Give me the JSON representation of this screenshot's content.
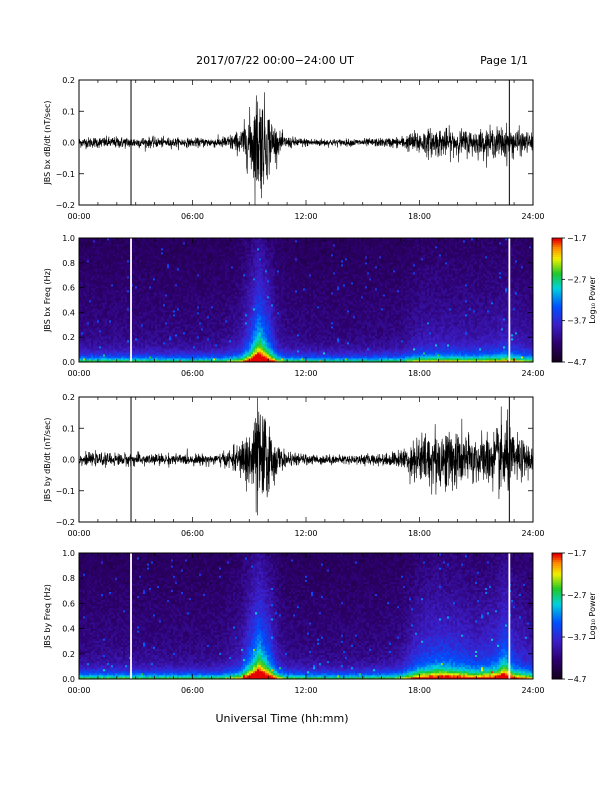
{
  "header": {
    "date_range": "2017/07/22  00:00−24:00 UT",
    "page": "Page 1/1"
  },
  "footer": {
    "xlabel": "Universal Time (hh:mm)"
  },
  "chart_data": [
    {
      "type": "line",
      "ylabel": "JBS bx dB/dt (nT/sec)",
      "x_ticks": [
        "00:00",
        "06:00",
        "12:00",
        "18:00",
        "24:00"
      ],
      "xlim_hours": [
        0,
        24
      ],
      "ylim": [
        -0.2,
        0.2
      ],
      "y_ticks": [
        -0.2,
        -0.1,
        0.0,
        0.1,
        0.2
      ],
      "y_tick_labels": [
        "−0.2",
        "−0.1",
        "0.0",
        "0.1",
        "0.2"
      ],
      "gaps_hours": [
        2.75,
        22.75
      ],
      "envelope": {
        "x_hours": [
          0,
          2,
          4,
          6,
          7.5,
          8.5,
          9,
          9.5,
          10,
          10.5,
          11,
          12,
          14,
          16,
          17,
          18,
          19,
          20,
          21,
          22,
          22.5,
          23,
          24
        ],
        "amp": [
          0.018,
          0.02,
          0.018,
          0.015,
          0.018,
          0.04,
          0.1,
          0.2,
          0.12,
          0.04,
          0.02,
          0.015,
          0.012,
          0.015,
          0.02,
          0.045,
          0.05,
          0.045,
          0.045,
          0.05,
          0.06,
          0.05,
          0.03
        ]
      }
    },
    {
      "type": "heatmap",
      "ylabel": "JBS bx Freq (Hz)",
      "x_ticks": [
        "00:00",
        "06:00",
        "12:00",
        "18:00",
        "24:00"
      ],
      "xlim_hours": [
        0,
        24
      ],
      "ylim": [
        0,
        1.0
      ],
      "y_tick_labels": [
        "0.0",
        "0.2",
        "0.4",
        "0.6",
        "0.8",
        "1.0"
      ],
      "gaps_hours": [
        2.75,
        22.75
      ],
      "colorbar": {
        "label": "Log₁₀ Power",
        "ticks": [
          "−1.7",
          "−2.7",
          "−3.7",
          "−4.7"
        ],
        "range": [
          -4.7,
          -1.7
        ]
      }
    },
    {
      "type": "line",
      "ylabel": "JBS by dB/dt (nT/sec)",
      "x_ticks": [
        "00:00",
        "06:00",
        "12:00",
        "18:00",
        "24:00"
      ],
      "xlim_hours": [
        0,
        24
      ],
      "ylim": [
        -0.2,
        0.2
      ],
      "y_ticks": [
        -0.2,
        -0.1,
        0.0,
        0.1,
        0.2
      ],
      "y_tick_labels": [
        "−0.2",
        "−0.1",
        "0.0",
        "0.1",
        "0.2"
      ],
      "gaps_hours": [
        2.75,
        22.75
      ],
      "envelope": {
        "x_hours": [
          0,
          2,
          4,
          6,
          7.5,
          8.5,
          9,
          9.5,
          10,
          10.5,
          11,
          12,
          14,
          16,
          17,
          18,
          19,
          20,
          21,
          22,
          22.5,
          23,
          24
        ],
        "amp": [
          0.02,
          0.022,
          0.02,
          0.018,
          0.02,
          0.05,
          0.12,
          0.2,
          0.13,
          0.05,
          0.022,
          0.018,
          0.015,
          0.02,
          0.03,
          0.09,
          0.11,
          0.1,
          0.08,
          0.1,
          0.15,
          0.08,
          0.05
        ]
      }
    },
    {
      "type": "heatmap",
      "ylabel": "JBS by Freq (Hz)",
      "x_ticks": [
        "00:00",
        "06:00",
        "12:00",
        "18:00",
        "24:00"
      ],
      "xlim_hours": [
        0,
        24
      ],
      "ylim": [
        0,
        1.0
      ],
      "y_tick_labels": [
        "0.0",
        "0.2",
        "0.4",
        "0.6",
        "0.8",
        "1.0"
      ],
      "gaps_hours": [
        2.75,
        22.75
      ],
      "colorbar": {
        "label": "Log₁₀ Power",
        "ticks": [
          "−1.7",
          "−2.7",
          "−3.7",
          "−4.7"
        ],
        "range": [
          -4.7,
          -1.7
        ]
      }
    }
  ]
}
